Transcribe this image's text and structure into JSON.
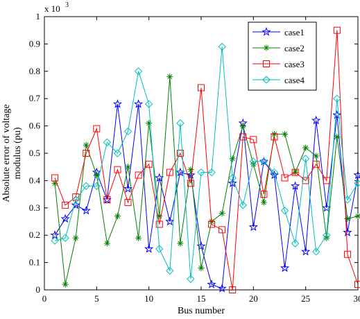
{
  "chart_data": {
    "type": "line",
    "xlabel": "Bus number",
    "ylabel_line1": "Absolute error of voltage",
    "ylabel_line2": "modulus (pu)",
    "y_multiplier_base": "x 10",
    "y_multiplier_exp": "3",
    "xlim": [
      0,
      30
    ],
    "ylim": [
      0,
      1
    ],
    "x_ticks": [
      0,
      5,
      10,
      15,
      20,
      25,
      30
    ],
    "y_ticks": [
      0,
      0.1,
      0.2,
      0.3,
      0.4,
      0.5,
      0.6,
      0.7,
      0.8,
      0.9,
      1
    ],
    "x_tick_labels": [
      "0",
      "5",
      "10",
      "15",
      "20",
      "25",
      "30"
    ],
    "y_tick_labels": [
      "0",
      "0.1",
      "0.2",
      "0.3",
      "0.4",
      "0.5",
      "0.6",
      "0.7",
      "0.8",
      "0.9",
      "1"
    ],
    "grid": false,
    "legend_position": "top-right",
    "x": [
      1,
      2,
      3,
      4,
      5,
      6,
      7,
      8,
      9,
      10,
      11,
      12,
      13,
      14,
      15,
      16,
      17,
      18,
      19,
      20,
      21,
      22,
      23,
      24,
      25,
      26,
      27,
      28,
      29,
      30
    ],
    "series": [
      {
        "name": "case1",
        "color": "#0000ff",
        "marker": "star",
        "values": [
          0.2,
          0.26,
          0.31,
          0.29,
          0.43,
          0.33,
          0.68,
          0.37,
          0.68,
          0.15,
          0.41,
          0.25,
          0.43,
          0.42,
          0.16,
          0.02,
          0.005,
          0.39,
          0.61,
          0.23,
          0.47,
          0.42,
          0.08,
          0.38,
          0.14,
          0.62,
          0.3,
          0.64,
          0.21,
          0.42
        ]
      },
      {
        "name": "case2",
        "color": "#008000",
        "marker": "asterisk",
        "values": [
          0.39,
          0.02,
          0.19,
          0.53,
          0.42,
          0.17,
          0.27,
          0.45,
          0.19,
          0.61,
          0.27,
          0.78,
          0.17,
          0.44,
          0.08,
          0.25,
          0.28,
          0.48,
          0.6,
          0.46,
          0.32,
          0.57,
          0.57,
          0.43,
          0.52,
          0.49,
          0.19,
          0.56,
          0.26,
          0.27
        ]
      },
      {
        "name": "case3",
        "color": "#ff0000",
        "marker": "square",
        "values": [
          0.41,
          0.31,
          0.34,
          0.5,
          0.59,
          0.33,
          0.44,
          0.32,
          0.42,
          0.46,
          0.24,
          0.43,
          0.5,
          0.39,
          0.74,
          0.24,
          0.22,
          0.0,
          0.56,
          0.55,
          0.35,
          0.56,
          0.41,
          0.43,
          0.4,
          0.46,
          0.4,
          0.95,
          0.13,
          0.02
        ]
      },
      {
        "name": "case4",
        "color": "#00bfbf",
        "marker": "diamond",
        "values": [
          0.18,
          0.19,
          0.33,
          0.38,
          0.38,
          0.54,
          0.5,
          0.58,
          0.8,
          0.68,
          0.15,
          0.07,
          0.61,
          0.04,
          0.43,
          0.43,
          0.89,
          0.41,
          0.31,
          0.47,
          0.47,
          0.43,
          0.29,
          0.17,
          0.48,
          0.14,
          0.2,
          0.7,
          0.33,
          0.39
        ]
      }
    ]
  }
}
